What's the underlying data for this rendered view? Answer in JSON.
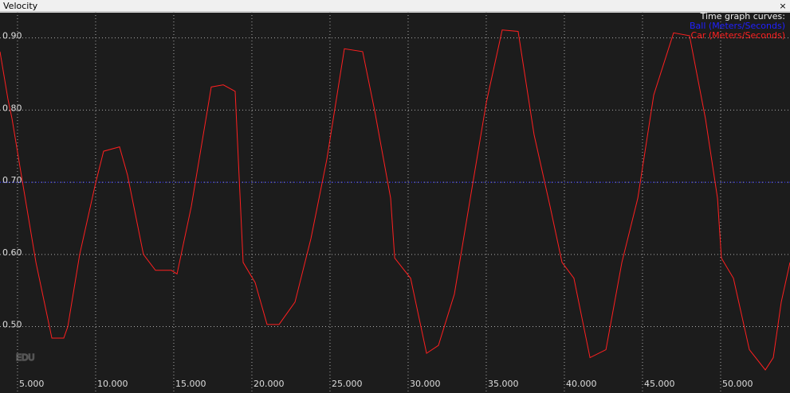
{
  "window": {
    "title": "Velocity",
    "close": "×"
  },
  "chart_data": {
    "type": "line",
    "legend_title": "Time graph curves:",
    "watermark": "EDU",
    "xlim": [
      3.88,
      54.44
    ],
    "ylim": [
      0.408,
      0.936
    ],
    "xticks": [
      {
        "value": 5,
        "label": "5.000"
      },
      {
        "value": 10,
        "label": "10.000"
      },
      {
        "value": 15,
        "label": "15.000"
      },
      {
        "value": 20,
        "label": "20.000"
      },
      {
        "value": 25,
        "label": "25.000"
      },
      {
        "value": 30,
        "label": "30.000"
      },
      {
        "value": 35,
        "label": "35.000"
      },
      {
        "value": 40,
        "label": "40.000"
      },
      {
        "value": 45,
        "label": "45.000"
      },
      {
        "value": 50,
        "label": "50.000"
      }
    ],
    "yticks": [
      {
        "value": 0.5,
        "label": "0.50"
      },
      {
        "value": 0.6,
        "label": "0.60"
      },
      {
        "value": 0.7,
        "label": "0.70"
      },
      {
        "value": 0.8,
        "label": "0.80"
      },
      {
        "value": 0.9,
        "label": "0.90"
      }
    ],
    "grid": true,
    "legend": "top-right",
    "series": [
      {
        "name": "Ball (Meters/Seconds)",
        "color": "#2020ff",
        "x": [
          3.88,
          54.44
        ],
        "values": [
          0.7,
          0.7
        ]
      },
      {
        "name": "Car (Meters/Seconds)",
        "color": "#ff2020",
        "x": [
          3.88,
          4.39,
          4.65,
          5.16,
          6.18,
          7.2,
          7.96,
          8.22,
          8.98,
          10.0,
          10.51,
          11.53,
          12.04,
          13.06,
          13.83,
          14.85,
          15.21,
          16.12,
          17.4,
          18.17,
          18.93,
          19.44,
          20.21,
          20.97,
          21.74,
          22.76,
          23.78,
          24.8,
          25.92,
          27.09,
          27.86,
          28.88,
          29.14,
          30.16,
          31.18,
          31.94,
          32.96,
          33.98,
          35.0,
          36.02,
          37.04,
          38.06,
          39.08,
          39.85,
          40.61,
          41.64,
          42.66,
          43.68,
          44.7,
          45.72,
          46.99,
          48.01,
          49.03,
          49.8,
          50.05,
          50.82,
          51.84,
          52.86,
          53.37,
          53.88,
          54.44
        ],
        "values": [
          0.881,
          0.815,
          0.788,
          0.721,
          0.589,
          0.484,
          0.484,
          0.5,
          0.6,
          0.699,
          0.743,
          0.749,
          0.71,
          0.6,
          0.578,
          0.578,
          0.573,
          0.666,
          0.832,
          0.835,
          0.826,
          0.589,
          0.561,
          0.503,
          0.503,
          0.534,
          0.622,
          0.732,
          0.885,
          0.881,
          0.799,
          0.678,
          0.595,
          0.567,
          0.463,
          0.474,
          0.545,
          0.678,
          0.81,
          0.911,
          0.909,
          0.766,
          0.667,
          0.589,
          0.567,
          0.457,
          0.468,
          0.589,
          0.678,
          0.821,
          0.907,
          0.903,
          0.788,
          0.678,
          0.595,
          0.567,
          0.468,
          0.44,
          0.457,
          0.534,
          0.589
        ]
      }
    ]
  }
}
